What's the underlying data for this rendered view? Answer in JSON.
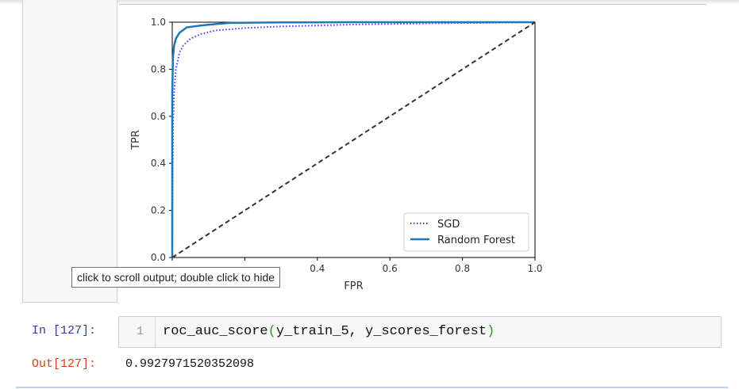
{
  "notebook": {
    "tooltip": "click to scroll output; double click to hide",
    "in_prompt": "In [127]:",
    "line_number": "1",
    "code": {
      "fn": "roc_auc_score",
      "open": "(",
      "args": "y_train_5, y_scores_forest",
      "close": ")"
    },
    "out_prompt": "Out[127]:",
    "out_value": "0.9927971520352098"
  },
  "chart_data": {
    "type": "line",
    "xlabel": "FPR",
    "ylabel": "TPR",
    "xlim": [
      0,
      1
    ],
    "ylim": [
      0,
      1
    ],
    "x_ticks": [
      "0.4",
      "0.6",
      "0.8",
      "1.0"
    ],
    "y_ticks": [
      "0.0",
      "0.2",
      "0.4",
      "0.6",
      "0.8",
      "1.0"
    ],
    "legend_position": "lower-right",
    "series": [
      {
        "name": "SGD",
        "style": "dotted",
        "color": "#3b3bff",
        "x": [
          0,
          0.002,
          0.005,
          0.01,
          0.02,
          0.03,
          0.05,
          0.08,
          0.12,
          0.2,
          0.3,
          0.5,
          0.7,
          0.9,
          1.0
        ],
        "y": [
          0,
          0.55,
          0.7,
          0.8,
          0.87,
          0.9,
          0.93,
          0.95,
          0.965,
          0.975,
          0.982,
          0.99,
          0.995,
          0.998,
          1.0
        ]
      },
      {
        "name": "Random Forest",
        "style": "solid",
        "color": "#1f77b4",
        "x": [
          0,
          0,
          0.002,
          0.005,
          0.01,
          0.02,
          0.04,
          0.08,
          0.12,
          0.16,
          0.3,
          0.5,
          1.0
        ],
        "y": [
          0,
          0.7,
          0.85,
          0.9,
          0.93,
          0.955,
          0.978,
          0.986,
          0.992,
          0.997,
          0.999,
          1.0,
          1.0
        ]
      },
      {
        "name": "",
        "style": "dashed",
        "color": "#333333",
        "x": [
          0,
          1
        ],
        "y": [
          0,
          1
        ]
      }
    ]
  }
}
